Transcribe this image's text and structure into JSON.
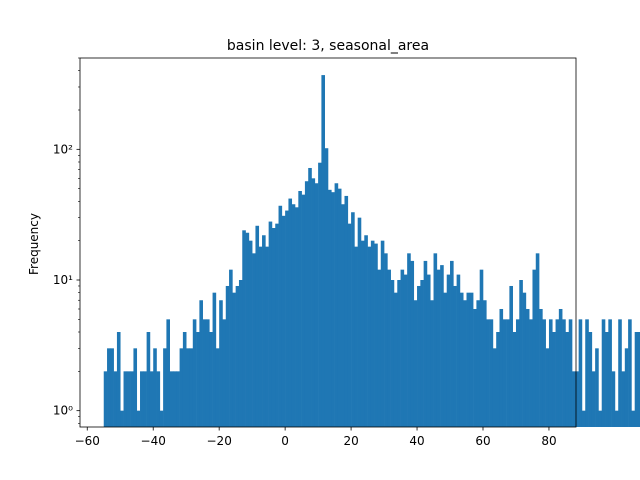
{
  "chart_data": {
    "type": "bar",
    "title": "basin level: 3, seasonal_area",
    "xlabel": "",
    "ylabel": "Frequency",
    "yscale": "log",
    "xlim": [
      -62.2,
      88.2
    ],
    "ylim": [
      0.75,
      500
    ],
    "grid": false,
    "color": "#1f77b4",
    "x_ticks": [
      -60,
      -40,
      -20,
      0,
      20,
      40,
      60,
      80
    ],
    "x_tick_labels": [
      "−60",
      "−40",
      "−20",
      "0",
      "20",
      "40",
      "60",
      "80"
    ],
    "y_ticks": [
      1,
      10,
      100
    ],
    "y_tick_labels": [
      "10⁰",
      "10¹",
      "10²"
    ],
    "bin_start": -55,
    "bin_width": 1.0,
    "values": [
      2,
      3,
      3,
      2,
      4,
      1,
      2,
      2,
      2,
      3,
      1,
      2,
      2,
      4,
      2,
      3,
      2,
      1,
      3,
      5,
      2,
      2,
      2,
      3,
      4,
      3,
      3,
      5,
      4,
      7,
      5,
      5,
      4,
      8,
      3,
      7,
      5,
      9,
      12,
      8,
      9,
      10,
      24,
      23,
      20,
      16,
      26,
      18,
      22,
      18,
      28,
      25,
      27,
      37,
      31,
      34,
      42,
      38,
      36,
      48,
      45,
      57,
      72,
      60,
      55,
      79,
      370,
      102,
      49,
      47,
      55,
      50,
      38,
      44,
      27,
      33,
      18,
      30,
      20,
      22,
      18,
      20,
      19,
      12,
      20,
      16,
      12,
      10,
      8,
      10,
      12,
      11,
      16,
      14,
      7,
      9,
      10,
      14,
      11,
      7,
      16,
      12,
      13,
      8,
      11,
      14,
      9,
      11,
      8,
      7,
      8,
      8,
      6,
      7,
      12,
      7,
      5,
      5,
      3,
      4,
      6,
      5,
      5,
      9,
      4,
      5,
      10,
      8,
      6,
      5,
      12,
      16,
      6,
      5,
      3,
      5,
      4,
      5,
      6,
      5,
      4,
      5,
      2,
      2,
      5,
      1,
      5,
      4,
      2,
      3,
      1,
      5,
      4,
      5,
      2,
      1,
      5,
      2,
      3,
      5,
      1,
      4,
      4,
      3,
      1
    ]
  }
}
